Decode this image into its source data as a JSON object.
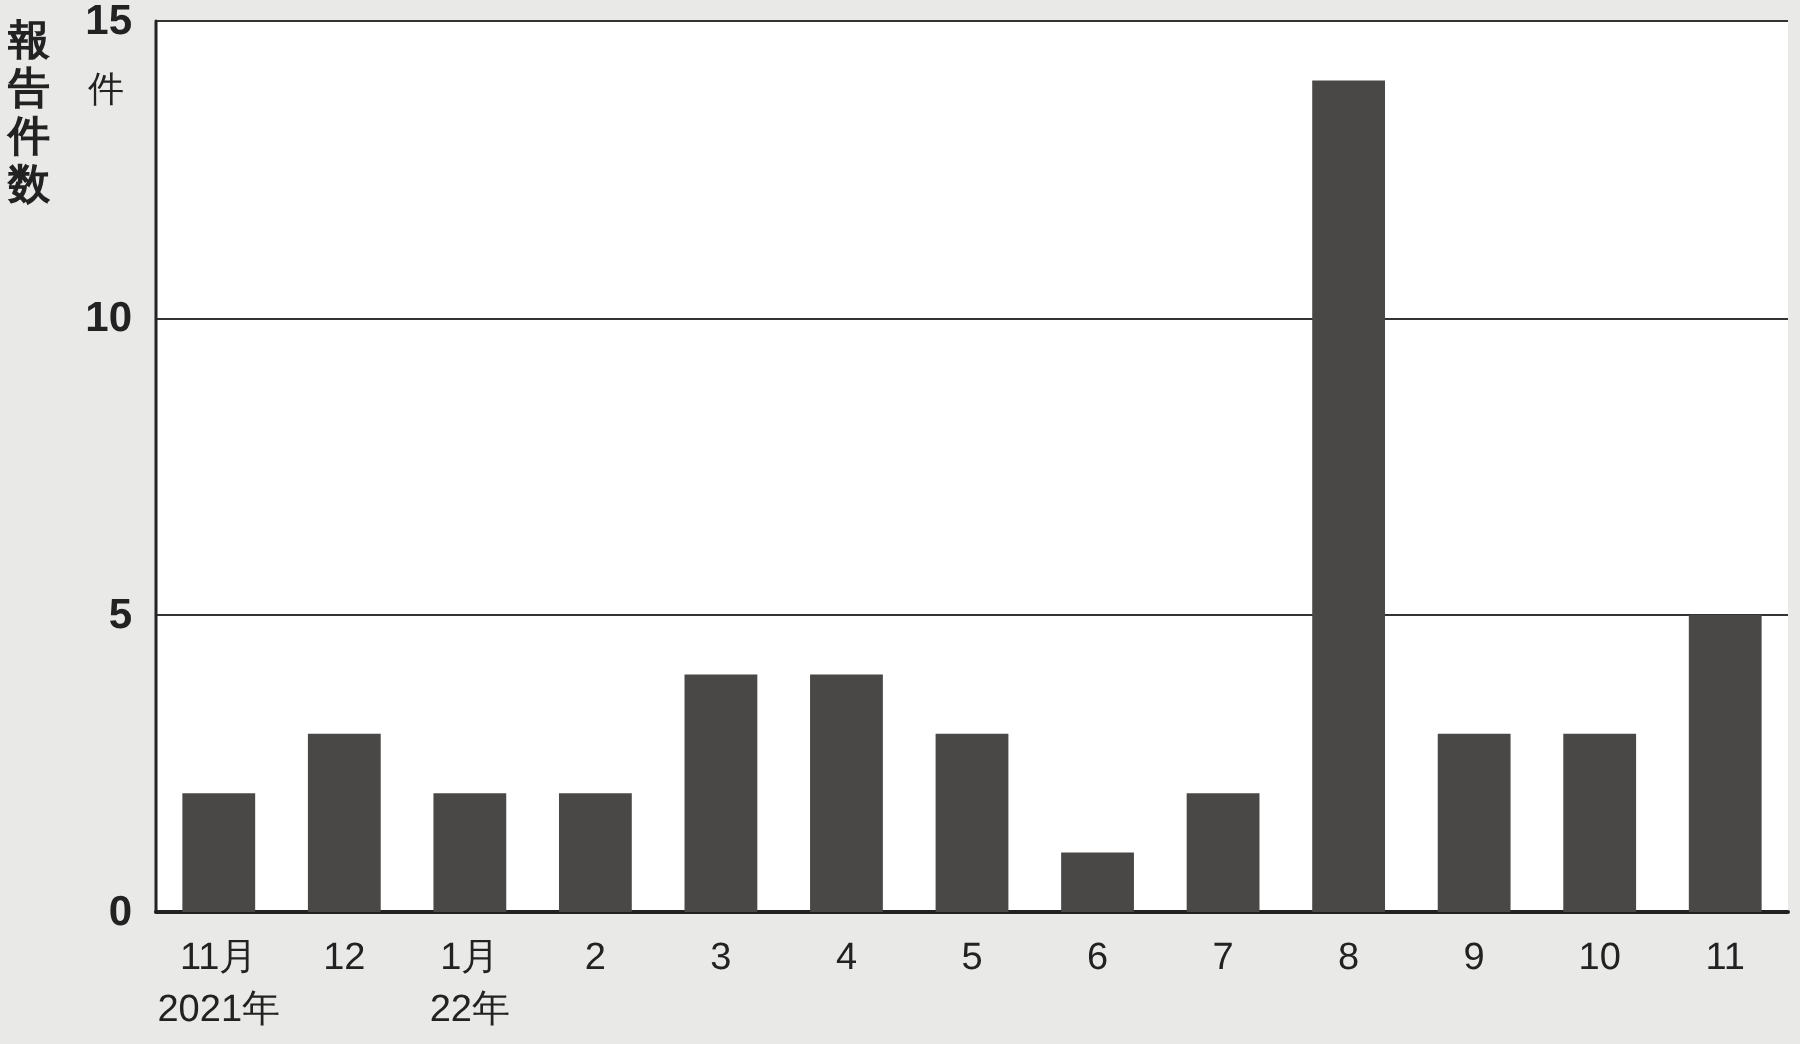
{
  "chart_data": {
    "type": "bar",
    "ylabel": "報告件数",
    "annotations": [
      "件"
    ],
    "categories": [
      "11月\n2021年",
      "12",
      "1月\n22年",
      "2",
      "3",
      "4",
      "5",
      "6",
      "7",
      "8",
      "9",
      "10",
      "11"
    ],
    "values": [
      2,
      3,
      2,
      2,
      4,
      4,
      3,
      1,
      2,
      14,
      3,
      3,
      5
    ],
    "color": "#4a4846",
    "ylim": [
      0,
      15
    ],
    "yticks": [
      0,
      5,
      10,
      15
    ],
    "grid": "y"
  }
}
